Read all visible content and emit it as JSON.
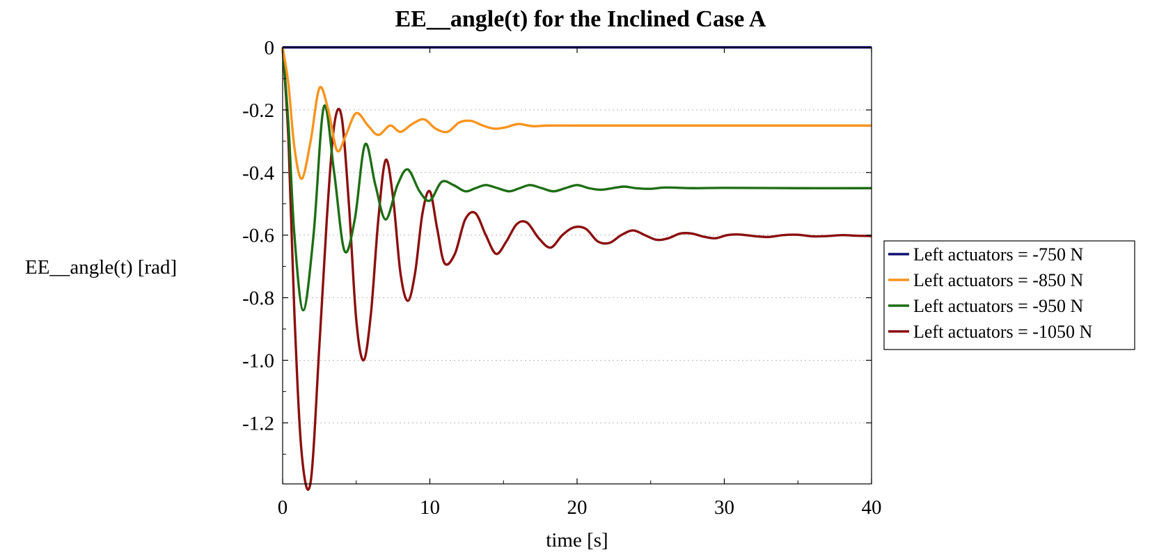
{
  "chart_data": {
    "type": "line",
    "title": "EE__angle(t) for the Inclined Case A",
    "xlabel": "time [s]",
    "ylabel": "EE__angle(t) [rad]",
    "xlim": [
      0,
      40
    ],
    "ylim": [
      -1.395,
      0
    ],
    "x_ticks": [
      0,
      10,
      20,
      30,
      40
    ],
    "x_tick_labels": [
      "0",
      "10",
      "20",
      "30",
      "40"
    ],
    "y_ticks": [
      0,
      -0.2,
      -0.4,
      -0.6,
      -0.8,
      -1.0,
      -1.2
    ],
    "y_tick_labels": [
      "0",
      "-0.2",
      "-0.4",
      "-0.6",
      "-0.8",
      "-1.0",
      "-1.2"
    ],
    "grid": "horizontal dotted",
    "legend_position": "right",
    "series": [
      {
        "name": "Left actuators = -750 N",
        "color": "#0f0f73",
        "x": [
          0,
          40
        ],
        "values": [
          0,
          0
        ]
      },
      {
        "name": "Left actuators = -850 N",
        "color": "#f7941d",
        "x": [
          0,
          0.4,
          0.8,
          1.3,
          1.9,
          2.5,
          3.1,
          3.7,
          4.3,
          5.0,
          5.8,
          6.5,
          7.3,
          8.0,
          8.8,
          9.6,
          10.4,
          11.2,
          12.0,
          12.8,
          13.6,
          14.4,
          15.2,
          16.0,
          17.0,
          18.0,
          20.0,
          25.0,
          30.0,
          35.0,
          40.0
        ],
        "values": [
          0,
          -0.12,
          -0.32,
          -0.42,
          -0.3,
          -0.13,
          -0.2,
          -0.33,
          -0.28,
          -0.21,
          -0.25,
          -0.28,
          -0.25,
          -0.27,
          -0.245,
          -0.23,
          -0.26,
          -0.27,
          -0.24,
          -0.235,
          -0.25,
          -0.26,
          -0.255,
          -0.245,
          -0.252,
          -0.25,
          -0.25,
          -0.25,
          -0.25,
          -0.25,
          -0.25
        ]
      },
      {
        "name": "Left actuators = -950 N",
        "color": "#1e6e14",
        "x": [
          0,
          0.4,
          0.8,
          1.4,
          2.1,
          2.8,
          3.5,
          4.2,
          4.9,
          5.6,
          6.3,
          7.0,
          7.8,
          8.5,
          9.3,
          10.0,
          10.8,
          11.6,
          12.4,
          13.1,
          13.8,
          14.6,
          15.4,
          16.1,
          16.8,
          17.6,
          18.4,
          19.2,
          20.0,
          20.8,
          21.6,
          22.4,
          23.2,
          24.0,
          25.0,
          26.0,
          28.0,
          30.0,
          35.0,
          40.0
        ],
        "values": [
          0,
          -0.25,
          -0.6,
          -0.84,
          -0.6,
          -0.19,
          -0.4,
          -0.65,
          -0.55,
          -0.31,
          -0.44,
          -0.55,
          -0.44,
          -0.39,
          -0.46,
          -0.49,
          -0.43,
          -0.44,
          -0.46,
          -0.45,
          -0.44,
          -0.45,
          -0.46,
          -0.45,
          -0.44,
          -0.45,
          -0.46,
          -0.45,
          -0.44,
          -0.45,
          -0.455,
          -0.45,
          -0.445,
          -0.45,
          -0.452,
          -0.448,
          -0.45,
          -0.449,
          -0.45,
          -0.45
        ]
      },
      {
        "name": "Left actuators = -1050 N",
        "color": "#8b0f0f",
        "x": [
          0,
          0.4,
          0.8,
          1.3,
          1.9,
          2.5,
          3.0,
          3.5,
          4.0,
          4.5,
          5.0,
          5.5,
          6.0,
          6.5,
          7.0,
          7.5,
          8.0,
          8.5,
          9.0,
          9.5,
          10.0,
          10.5,
          11.0,
          11.7,
          12.4,
          13.1,
          13.8,
          14.5,
          15.2,
          15.9,
          16.6,
          17.4,
          18.2,
          19.0,
          19.8,
          20.6,
          21.4,
          22.2,
          23.0,
          23.8,
          24.6,
          25.4,
          26.2,
          27.0,
          27.8,
          28.6,
          29.4,
          30.2,
          31.0,
          32.0,
          33.0,
          34.0,
          35.0,
          36.0,
          37.0,
          38.0,
          39.0,
          40.0
        ],
        "values": [
          0,
          -0.3,
          -0.85,
          -1.3,
          -1.39,
          -0.95,
          -0.55,
          -0.25,
          -0.22,
          -0.5,
          -0.87,
          -1.0,
          -0.85,
          -0.55,
          -0.36,
          -0.48,
          -0.72,
          -0.81,
          -0.72,
          -0.53,
          -0.46,
          -0.58,
          -0.69,
          -0.66,
          -0.55,
          -0.53,
          -0.6,
          -0.66,
          -0.62,
          -0.565,
          -0.56,
          -0.61,
          -0.64,
          -0.6,
          -0.575,
          -0.58,
          -0.62,
          -0.625,
          -0.6,
          -0.585,
          -0.6,
          -0.615,
          -0.61,
          -0.595,
          -0.595,
          -0.605,
          -0.61,
          -0.6,
          -0.598,
          -0.603,
          -0.606,
          -0.6,
          -0.599,
          -0.604,
          -0.603,
          -0.6,
          -0.602,
          -0.603
        ]
      }
    ]
  }
}
